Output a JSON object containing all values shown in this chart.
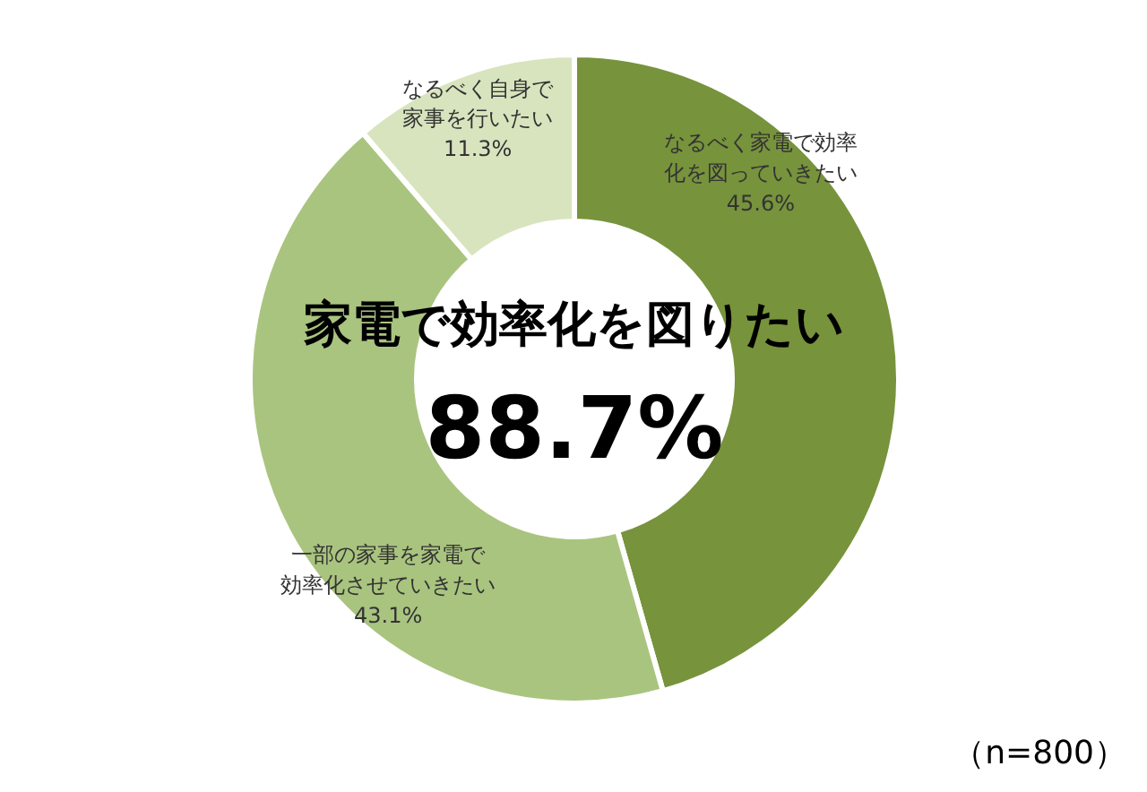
{
  "chart_data": {
    "type": "donut",
    "categories": [
      "なるべく家電で効率化を図っていきたい",
      "一部の家事を家電で効率化させていきたい",
      "なるべく自身で家事を行いたい"
    ],
    "values": [
      45.6,
      43.1,
      11.3
    ],
    "colors": [
      "#77933c",
      "#a9c47f",
      "#d7e4bd"
    ],
    "value_labels": [
      "45.6%",
      "43.1%",
      "11.3%"
    ],
    "annotations": [
      "家電で効率化を図りたい",
      "88.7%",
      "（n=800）"
    ]
  }
}
